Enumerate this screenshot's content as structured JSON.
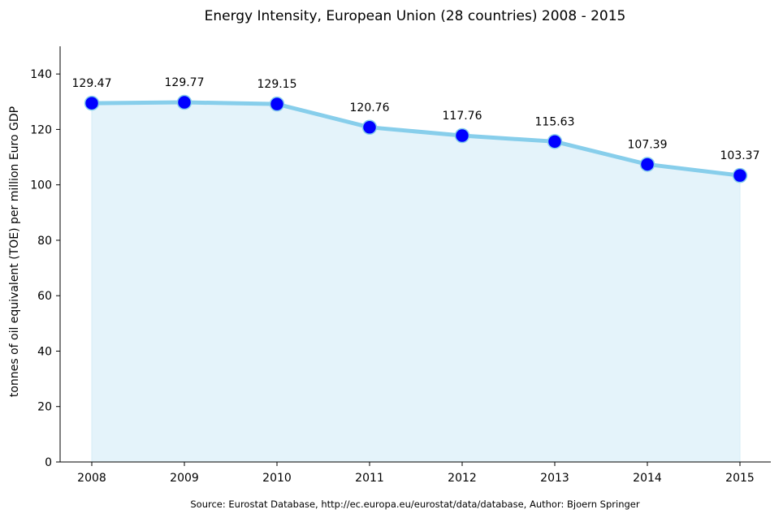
{
  "chart_data": {
    "type": "area",
    "title": "Energy Intensity, European Union (28 countries) 2008 - 2015",
    "xlabel": "",
    "ylabel": "tonnes of oil equivalent (TOE) per million Euro GDP",
    "categories": [
      "2008",
      "2009",
      "2010",
      "2011",
      "2012",
      "2013",
      "2014",
      "2015"
    ],
    "x": [
      2008,
      2009,
      2010,
      2011,
      2012,
      2013,
      2014,
      2015
    ],
    "series": [
      {
        "name": "Energy Intensity",
        "values": [
          129.47,
          129.77,
          129.15,
          120.76,
          117.76,
          115.63,
          107.39,
          103.37
        ],
        "data_labels": [
          "129.47",
          "129.77",
          "129.15",
          "120.76",
          "117.76",
          "115.63",
          "107.39",
          "103.37"
        ]
      }
    ],
    "ylim": [
      0,
      150
    ],
    "yticks": [
      0,
      20,
      40,
      60,
      80,
      100,
      120,
      140
    ],
    "ytick_labels": [
      "0",
      "20",
      "40",
      "60",
      "80",
      "100",
      "120",
      "140"
    ],
    "grid": false,
    "source": "Source: Eurostat Database, http://ec.europa.eu/eurostat/data/database, Author: Bjoern Springer"
  },
  "colors": {
    "line": "#87ceeb",
    "fill": "#e4f3fa",
    "marker": "#0000ff",
    "marker_edge": "#87ceeb",
    "axis": "#000000"
  }
}
